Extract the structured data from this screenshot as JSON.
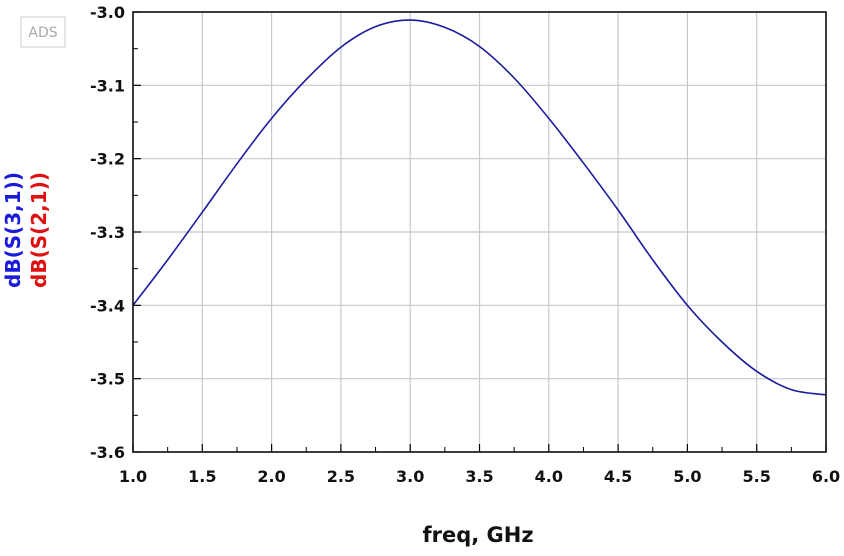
{
  "logo": "ADS",
  "chart_data": {
    "type": "line",
    "xlabel": "freq, GHz",
    "xlim": [
      1.0,
      6.0
    ],
    "ylim": [
      -3.6,
      -3.0
    ],
    "xticks": [
      "1.0",
      "1.5",
      "2.0",
      "2.5",
      "3.0",
      "3.5",
      "4.0",
      "4.5",
      "5.0",
      "5.5",
      "6.0"
    ],
    "yticks": [
      "-3.0",
      "-3.1",
      "-3.2",
      "-3.3",
      "-3.4",
      "-3.5",
      "-3.6"
    ],
    "grid": true,
    "y_axis_labels": [
      {
        "text": "dB(S(3,1))",
        "color": "#1a1adb"
      },
      {
        "text": "dB(S(2,1))",
        "color": "#e01010"
      }
    ],
    "series": [
      {
        "color": "#1c1a9e",
        "x": [
          1.0,
          1.25,
          1.5,
          1.75,
          2.0,
          2.25,
          2.5,
          2.75,
          3.0,
          3.25,
          3.5,
          3.75,
          4.0,
          4.25,
          4.5,
          4.75,
          5.0,
          5.25,
          5.5,
          5.75,
          6.0
        ],
        "y": [
          -3.4,
          -3.338,
          -3.273,
          -3.207,
          -3.145,
          -3.092,
          -3.048,
          -3.02,
          -3.011,
          -3.021,
          -3.047,
          -3.09,
          -3.145,
          -3.206,
          -3.27,
          -3.338,
          -3.4,
          -3.45,
          -3.49,
          -3.515,
          -3.522
        ]
      }
    ]
  }
}
